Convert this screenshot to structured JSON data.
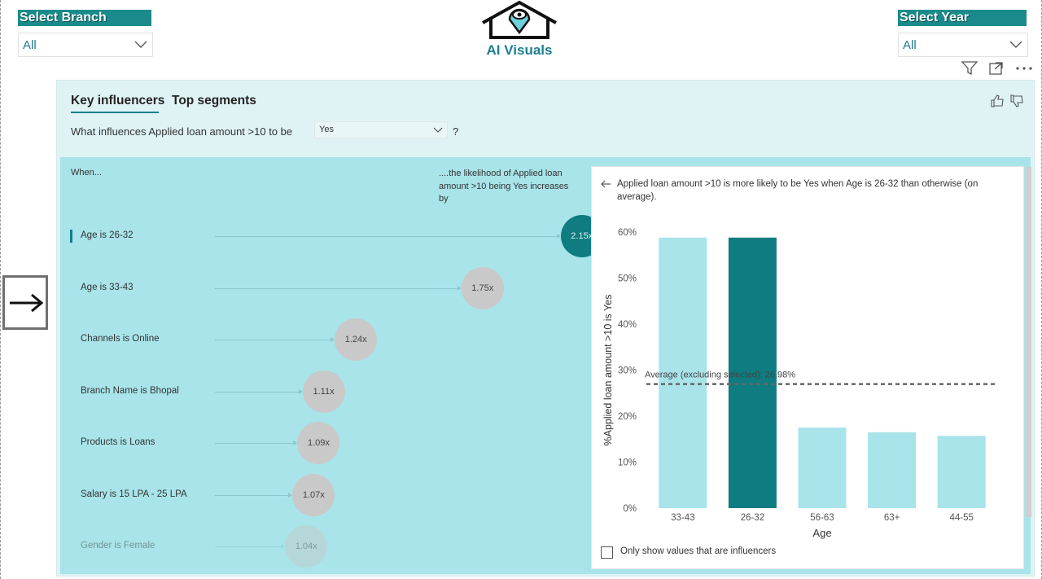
{
  "slicers": {
    "branch": {
      "title": "Select Branch",
      "value": "All"
    },
    "year": {
      "title": "Select Year",
      "value": "All"
    }
  },
  "logo": {
    "text": "AI Visuals"
  },
  "visual_header_icons": [
    "filter-icon",
    "focus-mode-icon",
    "more-options-icon"
  ],
  "key_influencers": {
    "tabs": [
      "Key influencers",
      "Top segments"
    ],
    "active_tab": "Key influencers",
    "question": {
      "prefix": "What influences Applied loan amount >10 to be",
      "selected": "Yes",
      "suffix": "?"
    },
    "columns": {
      "when": "When...",
      "likelihood": "....the likelihood of Applied loan amount >10 being Yes increases by"
    },
    "influencers": [
      {
        "label": "Age is 26-32",
        "factor": "2.15x",
        "value": 2.15,
        "selected": true
      },
      {
        "label": "Age is 33-43",
        "factor": "1.75x",
        "value": 1.75,
        "selected": false
      },
      {
        "label": "Channels is Online",
        "factor": "1.24x",
        "value": 1.24,
        "selected": false
      },
      {
        "label": "Branch Name is Bhopal",
        "factor": "1.11x",
        "value": 1.11,
        "selected": false
      },
      {
        "label": "Products is Loans",
        "factor": "1.09x",
        "value": 1.09,
        "selected": false
      },
      {
        "label": "Salary is 15 LPA - 25 LPA",
        "factor": "1.07x",
        "value": 1.07,
        "selected": false
      },
      {
        "label": "Gender is Female",
        "factor": "1.04x",
        "value": 1.04,
        "selected": false
      }
    ],
    "detail": {
      "description": "Applied loan amount >10 is more likely to be Yes when Age is 26-32 than otherwise (on average).",
      "checkbox_label": "Only show values that are influencers"
    }
  },
  "chart_data": {
    "type": "bar",
    "categories": [
      "33-43",
      "26-32",
      "56-63",
      "63+",
      "44-55"
    ],
    "values": [
      58.8,
      58.8,
      17.5,
      16.5,
      15.7
    ],
    "highlighted": "26-32",
    "xlabel": "Age",
    "ylabel": "%Applied loan amount >10 is Yes",
    "ylim": [
      0,
      60
    ],
    "yticks": [
      "0%",
      "10%",
      "20%",
      "30%",
      "40%",
      "50%",
      "60%"
    ],
    "average": {
      "value": 26.98,
      "label": "Average (excluding selected): 26.98%"
    },
    "colors": {
      "bar": "#a8e4e9",
      "selected": "#0e7c80",
      "average_line": "#666666"
    }
  },
  "colors": {
    "accent": "#117f88",
    "panel_bg": "#a8e4e9",
    "visual_bg": "#dff3f5",
    "slicer_title": "#1a8a8a"
  }
}
